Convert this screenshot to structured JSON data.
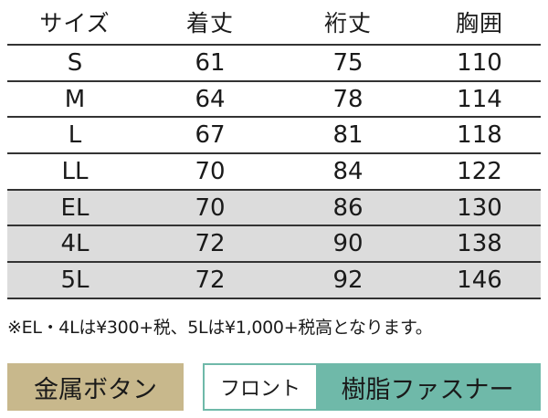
{
  "table": {
    "headers": [
      "サイズ",
      "着丈",
      "裄丈",
      "胸囲"
    ],
    "rows": [
      {
        "size": "S",
        "length": "61",
        "sleeve": "75",
        "chest": "110",
        "shaded": false
      },
      {
        "size": "M",
        "length": "64",
        "sleeve": "78",
        "chest": "114",
        "shaded": false
      },
      {
        "size": "L",
        "length": "67",
        "sleeve": "81",
        "chest": "118",
        "shaded": false
      },
      {
        "size": "LL",
        "length": "70",
        "sleeve": "84",
        "chest": "122",
        "shaded": false
      },
      {
        "size": "EL",
        "length": "70",
        "sleeve": "86",
        "chest": "130",
        "shaded": true
      },
      {
        "size": "4L",
        "length": "72",
        "sleeve": "90",
        "chest": "138",
        "shaded": true
      },
      {
        "size": "5L",
        "length": "72",
        "sleeve": "92",
        "chest": "146",
        "shaded": true
      }
    ]
  },
  "note": "※EL・4Lは¥300+税、5Lは¥1,000+税高となります。",
  "tags": {
    "button_label": "金属ボタン",
    "front_label": "フロント",
    "front_value": "樹脂ファスナー"
  },
  "colors": {
    "shaded_row": "#dcdcdc",
    "button_tag": "#c8b88c",
    "front_tag": "#6fb9a9"
  }
}
